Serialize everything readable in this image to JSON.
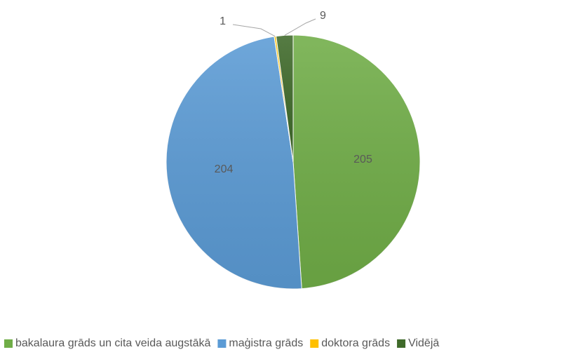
{
  "chart_data": {
    "type": "pie",
    "categories": [
      "bakalaura grāds un cita veida augstākā",
      "maģistra grāds",
      "doktora grāds",
      "Vidējā"
    ],
    "values": [
      205,
      204,
      1,
      9
    ],
    "colors": [
      "#70ad47",
      "#5b9bd5",
      "#ffc000",
      "#3f6a2a"
    ],
    "legend": "bottom"
  }
}
